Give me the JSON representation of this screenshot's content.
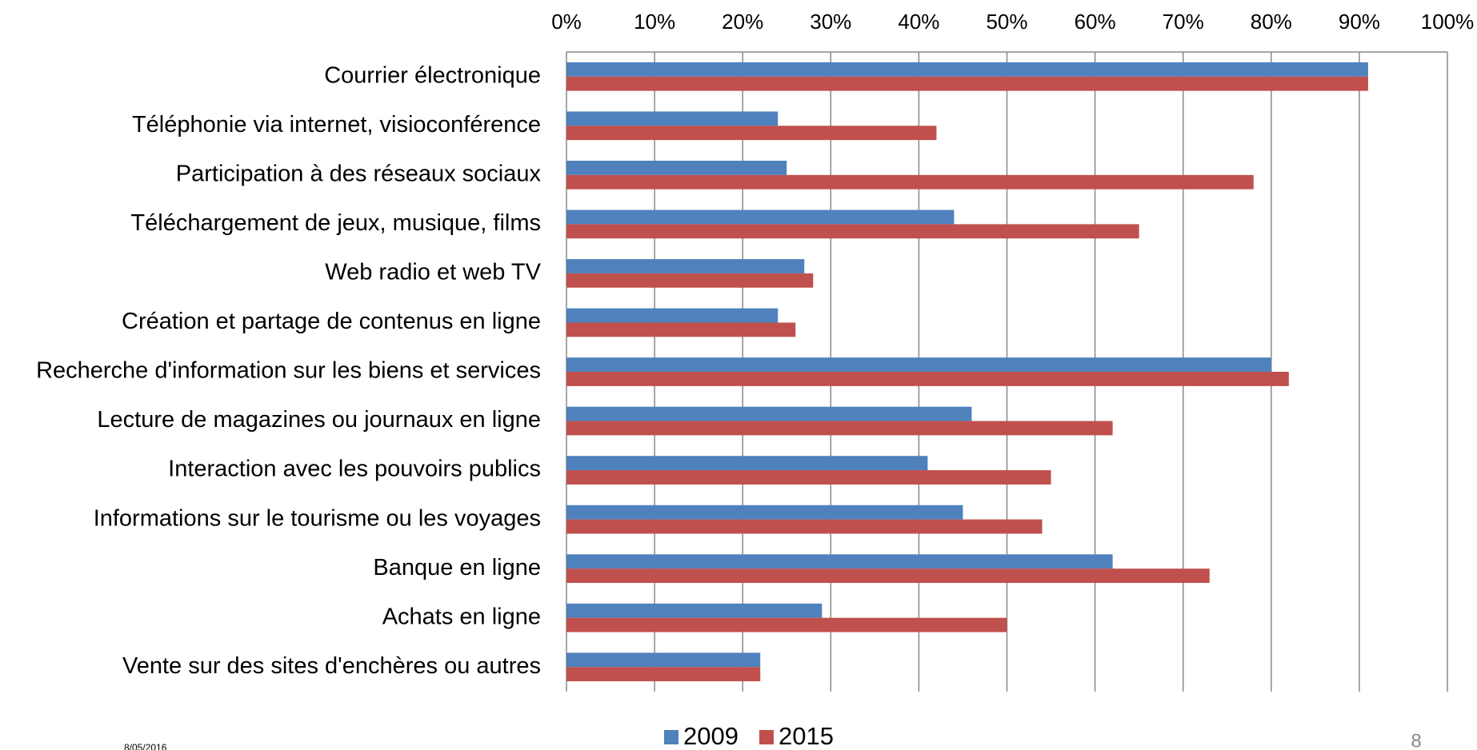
{
  "chart_data": {
    "type": "barh",
    "categories": [
      "Courrier électronique",
      "Téléphonie via internet, visioconférence",
      "Participation à des réseaux sociaux",
      "Téléchargement de jeux, musique, films",
      "Web radio et web TV",
      "Création et partage de contenus en ligne",
      "Recherche d'information sur les biens et services",
      "Lecture de magazines ou journaux en ligne",
      "Interaction avec les pouvoirs publics",
      "Informations sur le tourisme ou les voyages",
      "Banque en ligne",
      "Achats en ligne",
      "Vente sur des sites d'enchères ou autres"
    ],
    "series": [
      {
        "name": "2009",
        "color": "#4f81bd",
        "values": [
          91,
          24,
          25,
          44,
          27,
          24,
          80,
          46,
          41,
          45,
          62,
          29,
          22
        ]
      },
      {
        "name": "2015",
        "color": "#c0504d",
        "values": [
          91,
          42,
          78,
          65,
          28,
          26,
          82,
          62,
          55,
          54,
          73,
          50,
          22
        ]
      }
    ],
    "xlim": [
      0,
      100
    ],
    "xticks": [
      {
        "value": 0,
        "label": "0%"
      },
      {
        "value": 10,
        "label": "10%"
      },
      {
        "value": 20,
        "label": "20%"
      },
      {
        "value": 30,
        "label": "30%"
      },
      {
        "value": 40,
        "label": "40%"
      },
      {
        "value": 50,
        "label": "50%"
      },
      {
        "value": 60,
        "label": "60%"
      },
      {
        "value": 70,
        "label": "70%"
      },
      {
        "value": 80,
        "label": "80%"
      },
      {
        "value": 90,
        "label": "90%"
      },
      {
        "value": 100,
        "label": "100%"
      }
    ],
    "grid": true,
    "legend": "bottom"
  },
  "footer": {
    "date": "8/05/2016",
    "page_number": "8"
  }
}
